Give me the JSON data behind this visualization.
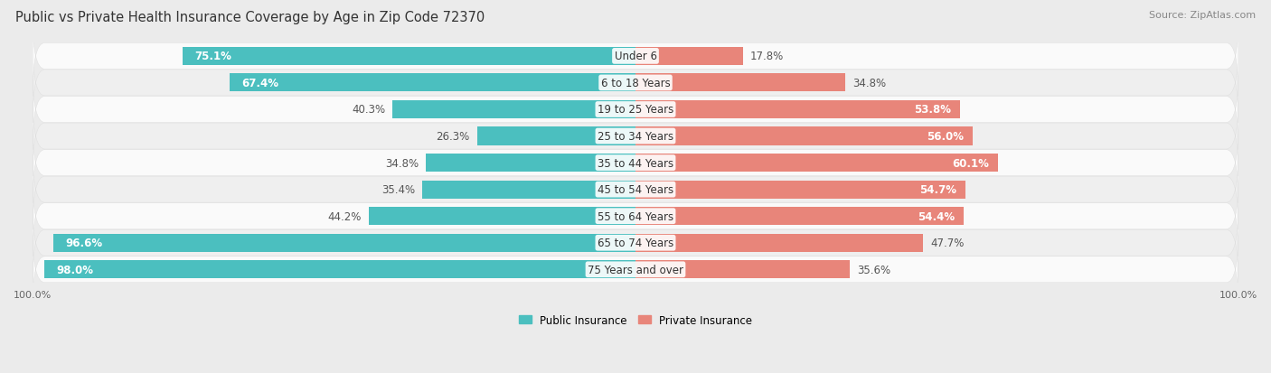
{
  "title": "Public vs Private Health Insurance Coverage by Age in Zip Code 72370",
  "source": "Source: ZipAtlas.com",
  "categories": [
    "Under 6",
    "6 to 18 Years",
    "19 to 25 Years",
    "25 to 34 Years",
    "35 to 44 Years",
    "45 to 54 Years",
    "55 to 64 Years",
    "65 to 74 Years",
    "75 Years and over"
  ],
  "public_values": [
    75.1,
    67.4,
    40.3,
    26.3,
    34.8,
    35.4,
    44.2,
    96.6,
    98.0
  ],
  "private_values": [
    17.8,
    34.8,
    53.8,
    56.0,
    60.1,
    54.7,
    54.4,
    47.7,
    35.6
  ],
  "public_color": "#4BBFBF",
  "private_color": "#E8857A",
  "background_color": "#EBEBEB",
  "row_bg_light": "#FAFAFA",
  "row_bg_dark": "#EFEFEF",
  "axis_max": 100.0,
  "title_fontsize": 10.5,
  "label_fontsize": 8.5,
  "tick_fontsize": 8,
  "source_fontsize": 8,
  "pub_white_threshold": 50,
  "priv_white_threshold": 50
}
